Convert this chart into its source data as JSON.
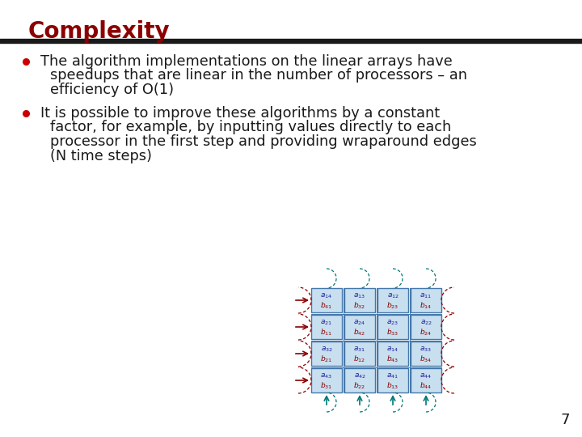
{
  "title": "Complexity",
  "title_color": "#8B0000",
  "title_fontsize": 20,
  "rule_color": "#1a1a1a",
  "bg_color": "#ffffff",
  "bullet_color": "#cc0000",
  "text_color": "#1a1a1a",
  "bullet1_lines": [
    "The algorithm implementations on the linear arrays have",
    "speedups that are linear in the number of processors – an",
    "efficiency of O(1)"
  ],
  "bullet2_lines": [
    "It is possible to improve these algorithms by a constant",
    "factor, for example, by inputting values directly to each",
    "processor in the first step and providing wraparound edges",
    "(N time steps)"
  ],
  "page_number": "7",
  "cell_bg": "#c8dff0",
  "cell_border": "#4477aa",
  "arrow_color_h": "#8B0000",
  "arrow_color_v": "#007777",
  "grid_labels_a": [
    [
      "a_{14}",
      "a_{13}",
      "a_{12}",
      "a_{11}"
    ],
    [
      "a_{21}",
      "a_{24}",
      "a_{23}",
      "a_{22}"
    ],
    [
      "a_{32}",
      "a_{31}",
      "a_{14}",
      "a_{33}"
    ],
    [
      "a_{43}",
      "a_{42}",
      "a_{41}",
      "a_{44}"
    ]
  ],
  "grid_labels_b": [
    [
      "b_{41}",
      "b_{32}",
      "b_{23}",
      "b_{14}"
    ],
    [
      "b_{11}",
      "b_{42}",
      "b_{33}",
      "b_{24}"
    ],
    [
      "b_{21}",
      "b_{12}",
      "b_{43}",
      "b_{34}"
    ],
    [
      "b_{31}",
      "b_{22}",
      "b_{13}",
      "b_{44}"
    ]
  ]
}
